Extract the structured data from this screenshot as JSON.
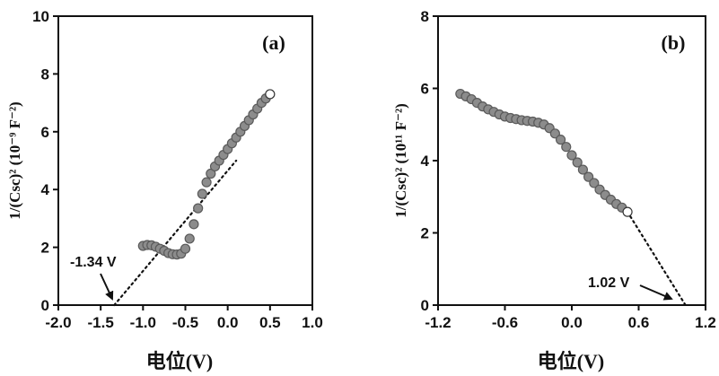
{
  "chart_data": [
    {
      "type": "scatter",
      "panel_label": "(a)",
      "xlabel": "电位(V)",
      "ylabel": "1/(Csc)² (10⁻⁹ F⁻²)",
      "xlim": [
        -2.0,
        1.0
      ],
      "ylim": [
        0,
        10
      ],
      "x_ticks": [
        "-2.0",
        "-1.5",
        "-1.0",
        "-0.5",
        "0.0",
        "0.5",
        "1.0"
      ],
      "y_ticks": [
        "0",
        "2",
        "4",
        "6",
        "8",
        "10"
      ],
      "grid": false,
      "series": [
        {
          "x": [
            -1.0,
            -0.95,
            -0.9,
            -0.85,
            -0.8,
            -0.75,
            -0.7,
            -0.65,
            -0.6,
            -0.55,
            -0.5,
            -0.45,
            -0.4,
            -0.35,
            -0.3,
            -0.25,
            -0.2,
            -0.15,
            -0.1,
            -0.05,
            0.0,
            0.05,
            0.1,
            0.15,
            0.2,
            0.25,
            0.3,
            0.35,
            0.4,
            0.45,
            0.5
          ],
          "y": [
            2.05,
            2.08,
            2.07,
            2.02,
            1.95,
            1.88,
            1.8,
            1.76,
            1.75,
            1.78,
            1.95,
            2.3,
            2.8,
            3.35,
            3.85,
            4.25,
            4.55,
            4.8,
            5.0,
            5.2,
            5.4,
            5.6,
            5.8,
            6.0,
            6.2,
            6.4,
            6.6,
            6.8,
            7.0,
            7.15,
            7.3
          ]
        }
      ],
      "fit_line": {
        "x": [
          -1.34,
          0.1
        ],
        "y": [
          0,
          5.0
        ]
      },
      "annotation": {
        "text": "-1.34 V",
        "x": -1.34
      }
    },
    {
      "type": "scatter",
      "panel_label": "(b)",
      "xlabel": "电位(V)",
      "ylabel": "1/(Csc)² (10¹¹ F⁻²)",
      "xlim": [
        -1.2,
        1.2
      ],
      "ylim": [
        0,
        8
      ],
      "x_ticks": [
        "-1.2",
        "-0.6",
        "0.0",
        "0.6",
        "1.2"
      ],
      "y_ticks": [
        "0",
        "2",
        "4",
        "6",
        "8"
      ],
      "grid": false,
      "series": [
        {
          "x": [
            -1.0,
            -0.95,
            -0.9,
            -0.85,
            -0.8,
            -0.75,
            -0.7,
            -0.65,
            -0.6,
            -0.55,
            -0.5,
            -0.45,
            -0.4,
            -0.35,
            -0.3,
            -0.25,
            -0.2,
            -0.15,
            -0.1,
            -0.05,
            0.0,
            0.05,
            0.1,
            0.15,
            0.2,
            0.25,
            0.3,
            0.35,
            0.4,
            0.45,
            0.5
          ],
          "y": [
            5.85,
            5.78,
            5.7,
            5.6,
            5.5,
            5.42,
            5.35,
            5.28,
            5.22,
            5.18,
            5.15,
            5.12,
            5.1,
            5.08,
            5.05,
            5.0,
            4.9,
            4.75,
            4.58,
            4.38,
            4.15,
            3.95,
            3.75,
            3.55,
            3.38,
            3.2,
            3.05,
            2.92,
            2.8,
            2.7,
            2.58
          ]
        }
      ],
      "fit_line": {
        "x": [
          0.5,
          1.02
        ],
        "y": [
          2.58,
          0
        ]
      },
      "annotation": {
        "text": "1.02 V",
        "x": 1.02
      }
    }
  ]
}
